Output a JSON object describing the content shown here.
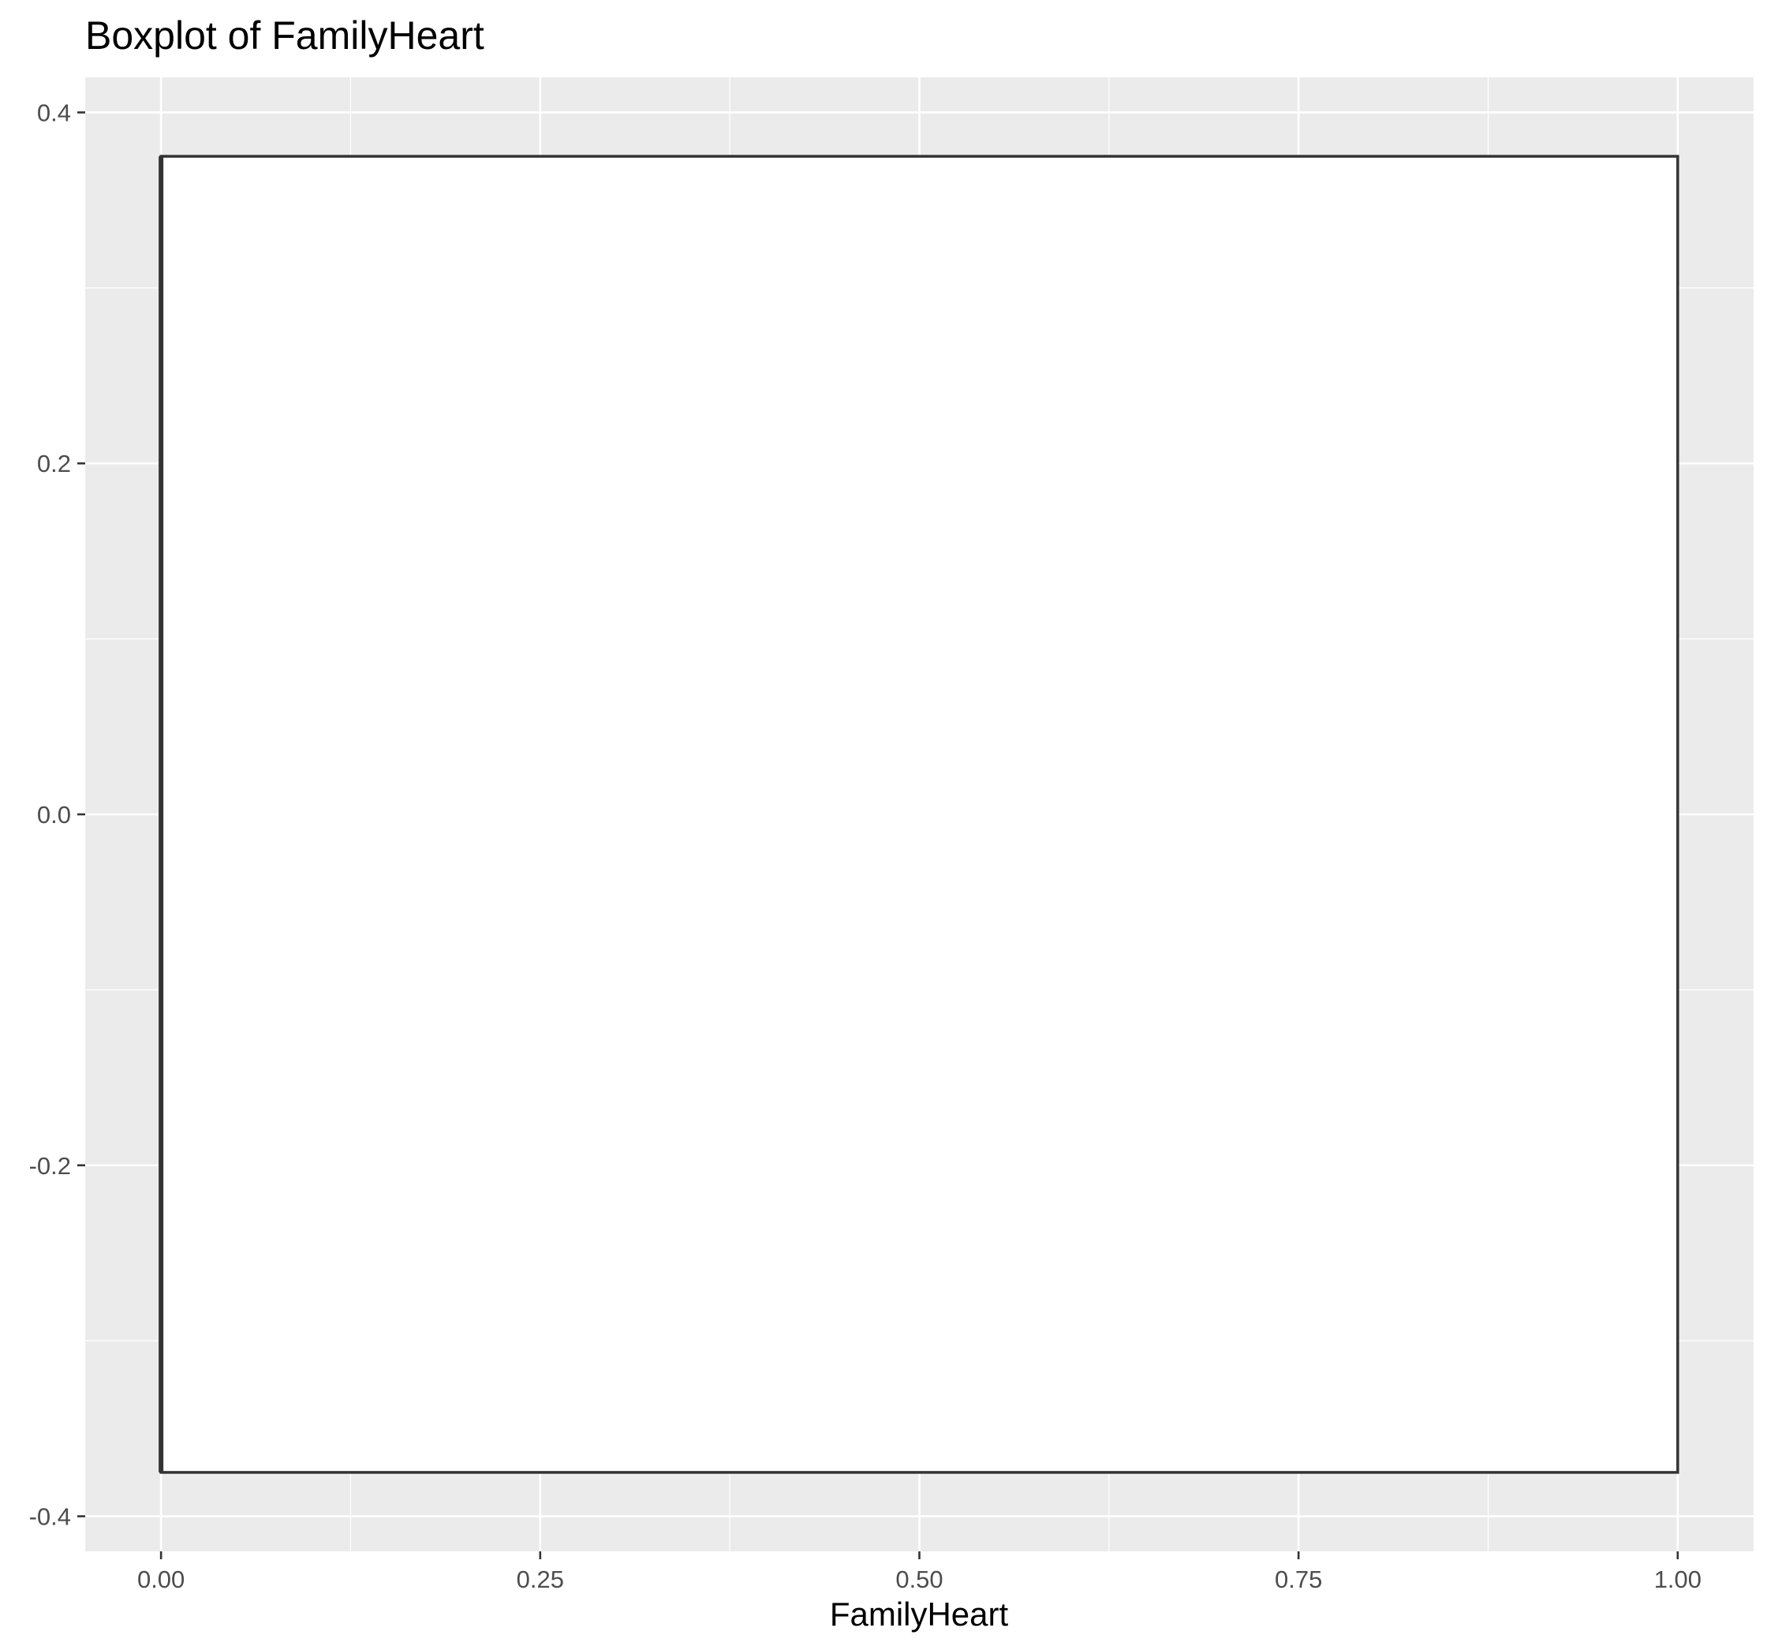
{
  "chart_data": {
    "type": "boxplot",
    "title": "Boxplot of FamilyHeart",
    "xlabel": "FamilyHeart",
    "ylabel": "",
    "xlim": [
      -0.05,
      1.05
    ],
    "ylim": [
      -0.42,
      0.42
    ],
    "x_ticks": [
      0.0,
      0.25,
      0.5,
      0.75,
      1.0
    ],
    "x_tick_labels": [
      "0.00",
      "0.25",
      "0.50",
      "0.75",
      "1.00"
    ],
    "y_ticks": [
      -0.4,
      -0.2,
      0.0,
      0.2,
      0.4
    ],
    "y_tick_labels": [
      "-0.4",
      "-0.2",
      "0.0",
      "0.2",
      "0.4"
    ],
    "grid": true,
    "legend": "none",
    "orientation": "horizontal",
    "box": {
      "lower_whisker": 0,
      "q1": 0,
      "median": 0,
      "q3": 1,
      "upper_whisker": 1,
      "box_y_range": [
        -0.375,
        0.375
      ]
    },
    "colors": {
      "panel_background": "#ebebeb",
      "gridline": "#ffffff",
      "box_fill": "#ffffff",
      "box_outline": "#333333"
    }
  }
}
